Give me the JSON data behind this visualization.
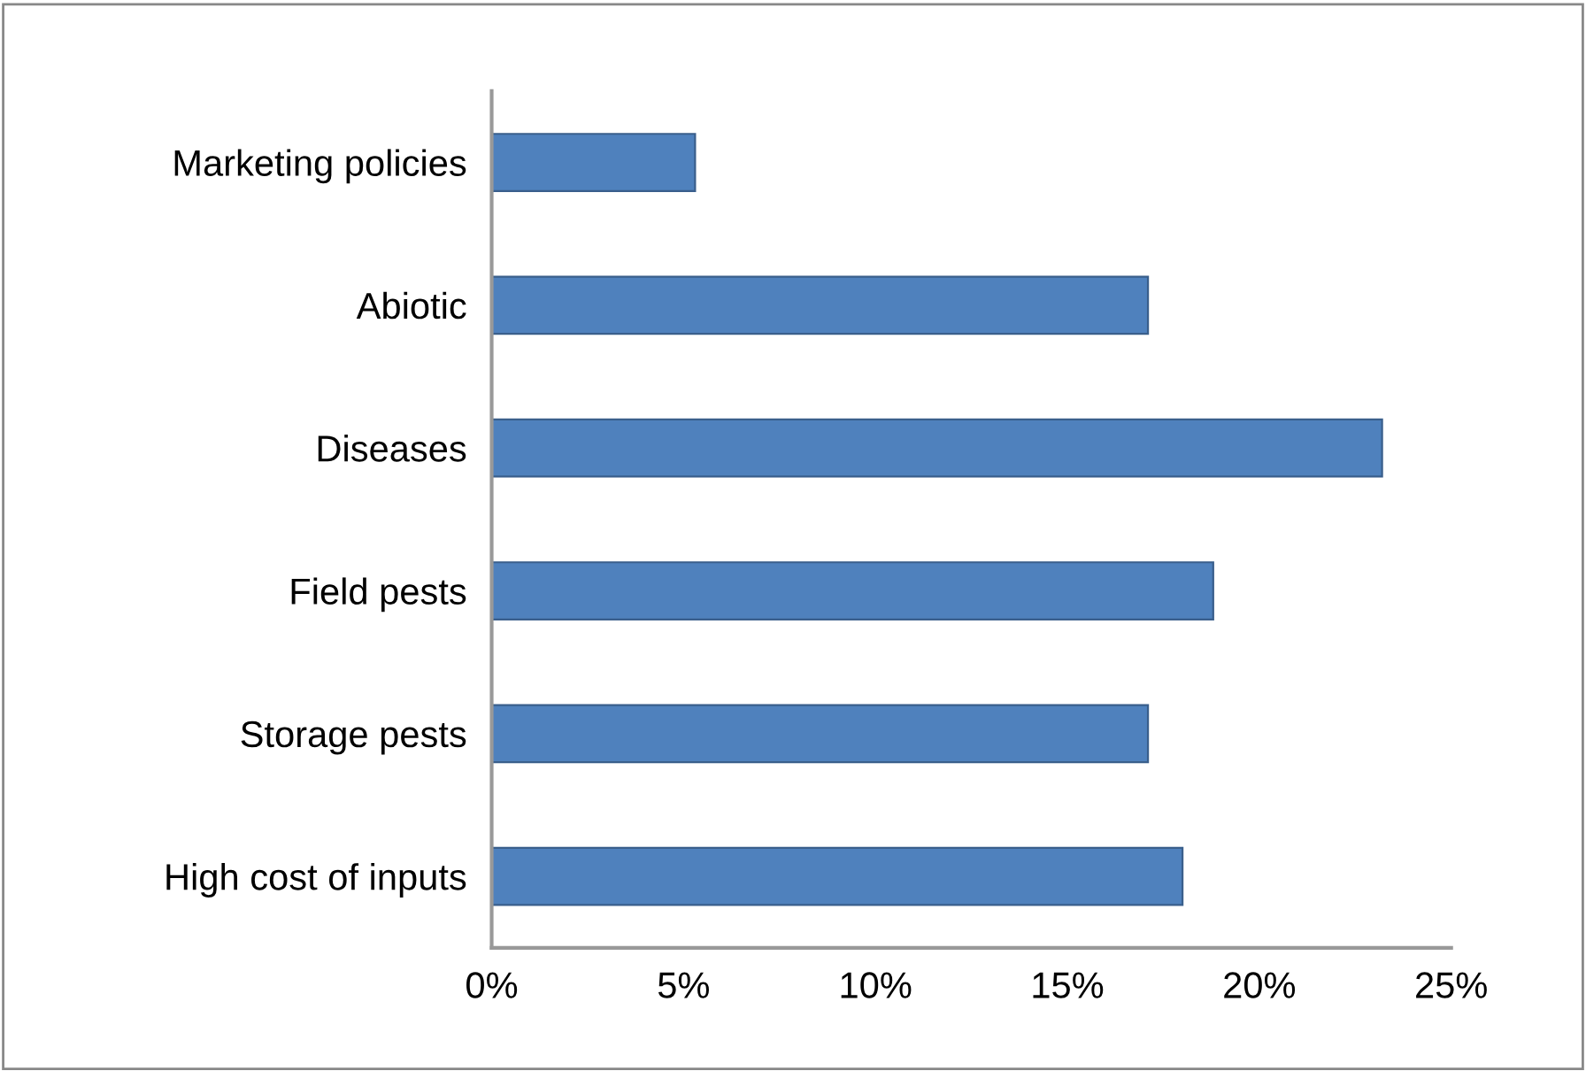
{
  "chart_data": {
    "type": "bar",
    "orientation": "horizontal",
    "categories": [
      "Marketing policies",
      "Abiotic",
      "Diseases",
      "Field pests",
      "Storage pests",
      "High cost of inputs"
    ],
    "values": [
      5.3,
      17.1,
      23.2,
      18.8,
      17.1,
      18.0
    ],
    "color": "#4f81bd",
    "xlim": [
      0,
      25
    ],
    "xticks": [
      {
        "value": 0,
        "label": "0%"
      },
      {
        "value": 5,
        "label": "5%"
      },
      {
        "value": 10,
        "label": "10%"
      },
      {
        "value": 15,
        "label": "15%"
      },
      {
        "value": 20,
        "label": "20%"
      },
      {
        "value": 25,
        "label": "25%"
      }
    ],
    "grid": false,
    "legend": false
  }
}
